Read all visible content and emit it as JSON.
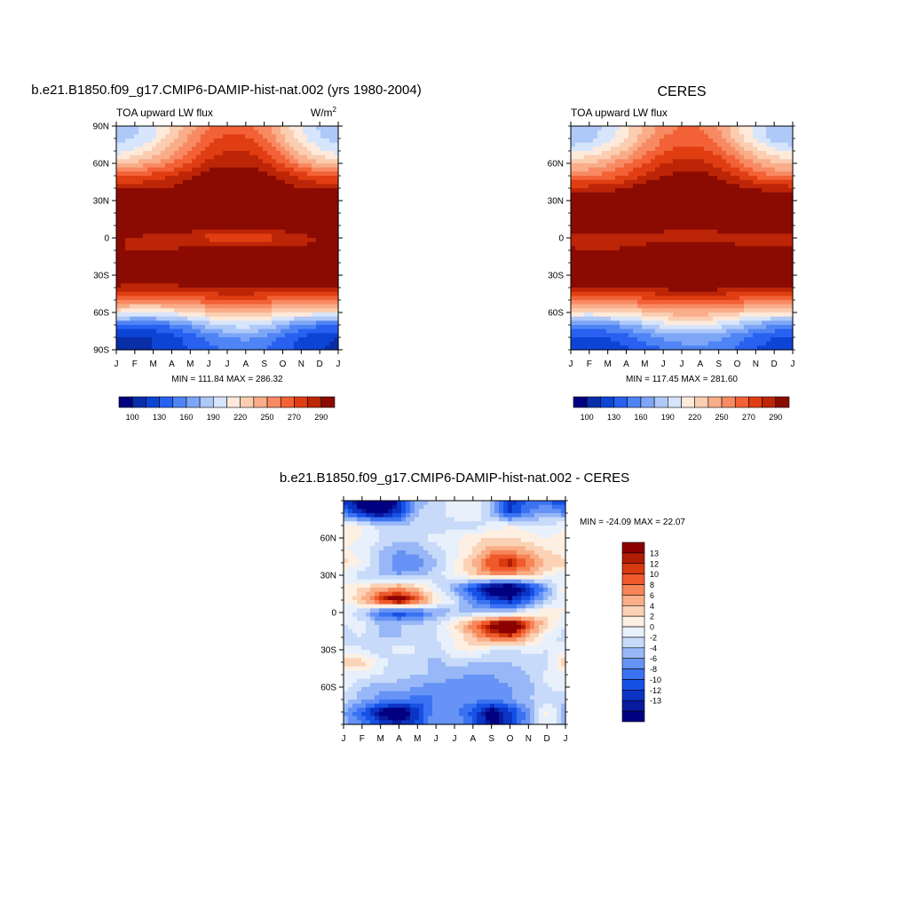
{
  "colors": {
    "fill_scale": [
      "#000080",
      "#0a2ea8",
      "#0c45d6",
      "#2860f0",
      "#4f84f5",
      "#7ea6f7",
      "#aec8f8",
      "#d6e5fb",
      "#fdeadb",
      "#fbcdb1",
      "#f9ad89",
      "#f88a63",
      "#f36136",
      "#e03e12",
      "#bd2507",
      "#8b0b02"
    ],
    "diff_scale": [
      "#000080",
      "#081a9e",
      "#0b34c4",
      "#1651e6",
      "#3a72f2",
      "#6693f5",
      "#98b7f7",
      "#c7daf9",
      "#e8f0fc",
      "#fdf0e3",
      "#fbd2b5",
      "#f9ae87",
      "#f78558",
      "#ef5a2c",
      "#d63a0e",
      "#b11d04",
      "#8b0000"
    ]
  },
  "panels": [
    {
      "id": "model",
      "title": "b.e21.B1850.f09_g17.CMIP6-DAMIP-hist-nat.002 (yrs 1980-2004)",
      "variable": "TOA upward LW flux",
      "units_base": "W/m",
      "units_sup": "2",
      "minmax": "MIN = 111.84 MAX = 286.32",
      "ytick_labels": [
        "90N",
        "60N",
        "30N",
        "0",
        "30S",
        "60S",
        "90S"
      ],
      "colorbar_labels": [
        "100",
        "130",
        "160",
        "190",
        "220",
        "250",
        "270",
        "290"
      ]
    },
    {
      "id": "obs",
      "title": "CERES",
      "variable": "TOA upward LW flux",
      "minmax": "MIN = 117.45 MAX = 281.60",
      "ytick_labels": [
        "60N",
        "30N",
        "0",
        "30S",
        "60S"
      ],
      "colorbar_labels": [
        "100",
        "130",
        "160",
        "190",
        "220",
        "250",
        "270",
        "290"
      ]
    },
    {
      "id": "diff",
      "title": "b.e21.B1850.f09_g17.CMIP6-DAMIP-hist-nat.002 - CERES",
      "minmax": "MIN = -24.09 MAX =  22.07",
      "ytick_labels": [
        "60N",
        "30N",
        "0",
        "30S",
        "60S"
      ],
      "colorbar_labels": [
        "13",
        "12",
        "10",
        "8",
        "6",
        "4",
        "2",
        "0",
        "-2",
        "-4",
        "-6",
        "-8",
        "-10",
        "-12",
        "-13"
      ]
    }
  ],
  "chart_data": [
    {
      "type": "heatmap",
      "title": "b.e21.B1850.f09_g17.CMIP6-DAMIP-hist-nat.002 (yrs 1980-2004)",
      "subtitle": "TOA upward LW flux",
      "units": "W/m2",
      "x": [
        "J",
        "F",
        "M",
        "A",
        "M",
        "J",
        "J",
        "A",
        "S",
        "O",
        "N",
        "D",
        "J"
      ],
      "ylim": [
        -90,
        90
      ],
      "y_ticks": [
        90,
        60,
        30,
        0,
        -30,
        -60,
        -90
      ],
      "levels": [
        100,
        110,
        120,
        130,
        140,
        150,
        160,
        170,
        180,
        190,
        200,
        210,
        220,
        230,
        240,
        250,
        260,
        270,
        280,
        290
      ],
      "min": 111.84,
      "max": 286.32,
      "lat": [
        -90,
        -80,
        -70,
        -60,
        -50,
        -40,
        -30,
        -20,
        -10,
        0,
        10,
        20,
        30,
        40,
        50,
        60,
        70,
        80,
        90
      ],
      "values": [
        [
          118,
          118,
          120,
          124,
          130,
          136,
          140,
          142,
          140,
          134,
          126,
          120,
          118
        ],
        [
          120,
          118,
          120,
          126,
          134,
          144,
          150,
          152,
          148,
          138,
          128,
          122,
          120
        ],
        [
          140,
          138,
          138,
          144,
          152,
          165,
          172,
          175,
          170,
          158,
          148,
          142,
          140
        ],
        [
          185,
          180,
          180,
          184,
          190,
          196,
          200,
          202,
          198,
          192,
          188,
          186,
          185
        ],
        [
          220,
          218,
          218,
          220,
          224,
          226,
          228,
          228,
          226,
          224,
          222,
          220,
          220
        ],
        [
          248,
          245,
          245,
          246,
          250,
          252,
          254,
          254,
          252,
          250,
          248,
          248,
          248
        ],
        [
          265,
          262,
          262,
          264,
          266,
          268,
          270,
          270,
          268,
          266,
          265,
          265,
          265
        ],
        [
          262,
          260,
          262,
          264,
          270,
          278,
          282,
          284,
          280,
          272,
          266,
          263,
          262
        ],
        [
          252,
          248,
          248,
          250,
          255,
          260,
          264,
          265,
          262,
          256,
          253,
          252,
          252
        ],
        [
          252,
          248,
          245,
          244,
          240,
          236,
          232,
          232,
          234,
          240,
          246,
          250,
          252
        ],
        [
          268,
          268,
          265,
          262,
          260,
          258,
          258,
          258,
          258,
          260,
          264,
          266,
          268
        ],
        [
          280,
          285,
          282,
          275,
          270,
          268,
          268,
          268,
          270,
          272,
          275,
          278,
          280
        ],
        [
          262,
          262,
          262,
          265,
          272,
          275,
          278,
          278,
          276,
          272,
          268,
          264,
          262
        ],
        [
          248,
          248,
          250,
          252,
          258,
          264,
          266,
          266,
          264,
          256,
          250,
          248,
          248
        ],
        [
          228,
          230,
          234,
          240,
          248,
          256,
          258,
          258,
          254,
          246,
          236,
          230,
          228
        ],
        [
          195,
          200,
          210,
          220,
          232,
          244,
          248,
          248,
          242,
          228,
          212,
          200,
          195
        ],
        [
          176,
          182,
          192,
          205,
          220,
          234,
          240,
          240,
          232,
          214,
          196,
          182,
          176
        ],
        [
          166,
          170,
          180,
          196,
          212,
          226,
          234,
          232,
          222,
          202,
          184,
          170,
          166
        ],
        [
          165,
          168,
          176,
          190,
          204,
          218,
          226,
          224,
          214,
          196,
          180,
          168,
          165
        ]
      ]
    },
    {
      "type": "heatmap",
      "title": "CERES",
      "subtitle": "TOA upward LW flux",
      "x": [
        "J",
        "F",
        "M",
        "A",
        "M",
        "J",
        "J",
        "A",
        "S",
        "O",
        "N",
        "D",
        "J"
      ],
      "ylim": [
        -90,
        90
      ],
      "y_ticks": [
        60,
        30,
        0,
        -30,
        -60
      ],
      "levels": [
        100,
        110,
        120,
        130,
        140,
        150,
        160,
        170,
        180,
        190,
        200,
        210,
        220,
        230,
        240,
        250,
        260,
        270,
        280,
        290
      ],
      "min": 117.45,
      "max": 281.6,
      "lat": [
        -90,
        -80,
        -70,
        -60,
        -50,
        -40,
        -30,
        -20,
        -10,
        0,
        10,
        20,
        30,
        40,
        50,
        60,
        70,
        80,
        90
      ],
      "values": [
        [
          122,
          122,
          124,
          128,
          134,
          140,
          144,
          146,
          144,
          138,
          130,
          124,
          122
        ],
        [
          130,
          128,
          130,
          136,
          144,
          152,
          156,
          156,
          152,
          144,
          136,
          130,
          130
        ],
        [
          150,
          148,
          150,
          156,
          166,
          176,
          180,
          180,
          176,
          166,
          156,
          150,
          150
        ],
        [
          188,
          186,
          188,
          192,
          196,
          202,
          206,
          206,
          202,
          196,
          192,
          188,
          188
        ],
        [
          222,
          222,
          222,
          224,
          226,
          228,
          230,
          230,
          228,
          226,
          224,
          222,
          222
        ],
        [
          250,
          248,
          248,
          250,
          252,
          254,
          256,
          256,
          254,
          252,
          250,
          250,
          250
        ],
        [
          266,
          264,
          264,
          266,
          268,
          270,
          272,
          272,
          270,
          268,
          266,
          266,
          266
        ],
        [
          264,
          262,
          262,
          264,
          268,
          274,
          278,
          280,
          276,
          270,
          266,
          264,
          264
        ],
        [
          252,
          250,
          250,
          252,
          256,
          260,
          262,
          262,
          260,
          256,
          253,
          252,
          252
        ],
        [
          244,
          242,
          242,
          244,
          244,
          242,
          240,
          240,
          242,
          244,
          244,
          244,
          244
        ],
        [
          262,
          262,
          262,
          262,
          260,
          258,
          256,
          256,
          258,
          260,
          262,
          262,
          262
        ],
        [
          274,
          272,
          270,
          268,
          268,
          270,
          272,
          272,
          270,
          268,
          270,
          272,
          274
        ],
        [
          262,
          262,
          262,
          264,
          268,
          274,
          278,
          278,
          276,
          270,
          266,
          263,
          262
        ],
        [
          244,
          244,
          246,
          250,
          256,
          262,
          264,
          264,
          260,
          254,
          248,
          245,
          244
        ],
        [
          218,
          220,
          224,
          232,
          242,
          250,
          254,
          254,
          248,
          238,
          228,
          220,
          218
        ],
        [
          196,
          200,
          208,
          218,
          230,
          240,
          244,
          244,
          236,
          224,
          210,
          200,
          196
        ],
        [
          176,
          182,
          190,
          202,
          216,
          228,
          234,
          234,
          226,
          210,
          194,
          182,
          176
        ],
        [
          162,
          166,
          176,
          190,
          206,
          220,
          226,
          224,
          214,
          196,
          178,
          166,
          162
        ],
        [
          160,
          164,
          172,
          186,
          200,
          214,
          222,
          220,
          210,
          192,
          176,
          164,
          160
        ]
      ]
    },
    {
      "type": "heatmap",
      "title": "b.e21.B1850.f09_g17.CMIP6-DAMIP-hist-nat.002 - CERES",
      "x": [
        "J",
        "F",
        "M",
        "A",
        "M",
        "J",
        "J",
        "A",
        "S",
        "O",
        "N",
        "D",
        "J"
      ],
      "ylim": [
        -90,
        90
      ],
      "y_ticks": [
        60,
        30,
        0,
        -30,
        -60
      ],
      "levels": [
        -14,
        -13,
        -12,
        -10,
        -8,
        -6,
        -4,
        -2,
        0,
        2,
        4,
        6,
        8,
        10,
        12,
        13,
        14
      ],
      "min": -24.09,
      "max": 22.07,
      "lat": [
        -90,
        -80,
        -70,
        -60,
        -50,
        -40,
        -30,
        -20,
        -10,
        0,
        10,
        20,
        30,
        40,
        50,
        60,
        70,
        80,
        90
      ],
      "values": [
        [
          -3,
          -6,
          -10,
          -12,
          -9,
          -4,
          -4,
          -8,
          -14,
          -10,
          -4,
          2,
          -3
        ],
        [
          -4,
          -8,
          -14,
          -16,
          -11,
          -4,
          -5,
          -9,
          -15,
          -11,
          -5,
          3,
          -4
        ],
        [
          -1,
          -3,
          -5,
          -6,
          -7,
          -6,
          -4,
          -5,
          -6,
          -4,
          -2,
          -1,
          -1
        ],
        [
          1,
          -2,
          -3,
          -3,
          -4,
          -5,
          -6,
          -6,
          -5,
          -4,
          -3,
          0,
          1
        ],
        [
          1,
          1,
          0,
          -1,
          -2,
          -2,
          -3,
          -4,
          -4,
          -3,
          -2,
          1,
          1
        ],
        [
          6,
          5,
          1,
          -2,
          -1,
          -3,
          -1,
          -2,
          -2,
          -2,
          -1,
          -1,
          6
        ],
        [
          1,
          0,
          -1,
          1,
          0,
          -1,
          2,
          3,
          0,
          -1,
          1,
          0,
          1
        ],
        [
          -1,
          0,
          -2,
          -2,
          -1,
          0,
          2,
          6,
          10,
          12,
          6,
          1,
          -1
        ],
        [
          0,
          1,
          -2,
          -2,
          -2,
          0,
          4,
          10,
          16,
          20,
          12,
          4,
          0
        ],
        [
          2,
          -2,
          -8,
          -10,
          -8,
          -4,
          -2,
          -2,
          -2,
          -2,
          2,
          4,
          2
        ],
        [
          2,
          6,
          14,
          18,
          12,
          4,
          0,
          -6,
          -10,
          -12,
          -8,
          -2,
          2
        ],
        [
          3,
          4,
          6,
          8,
          5,
          0,
          -4,
          -10,
          -16,
          -18,
          -12,
          -4,
          3
        ],
        [
          0,
          -1,
          -2,
          -4,
          -2,
          -1,
          2,
          5,
          8,
          8,
          6,
          3,
          0
        ],
        [
          5,
          2,
          -2,
          -6,
          -6,
          -2,
          2,
          6,
          12,
          14,
          10,
          6,
          5
        ],
        [
          2,
          1,
          -2,
          -4,
          -3,
          -1,
          1,
          4,
          8,
          8,
          6,
          4,
          2
        ],
        [
          3,
          2,
          0,
          -1,
          -1,
          1,
          2,
          3,
          4,
          4,
          3,
          2,
          3
        ],
        [
          2,
          2,
          -1,
          -2,
          -1,
          -2,
          -1,
          -1,
          1,
          2,
          1,
          0,
          2
        ],
        [
          -6,
          -12,
          -15,
          -10,
          -2,
          -1,
          1,
          2,
          -3,
          -10,
          -6,
          -3,
          -6
        ],
        [
          -10,
          -16,
          -20,
          -12,
          -3,
          -1,
          1,
          2,
          -2,
          -12,
          -7,
          -8,
          -10
        ]
      ]
    }
  ]
}
